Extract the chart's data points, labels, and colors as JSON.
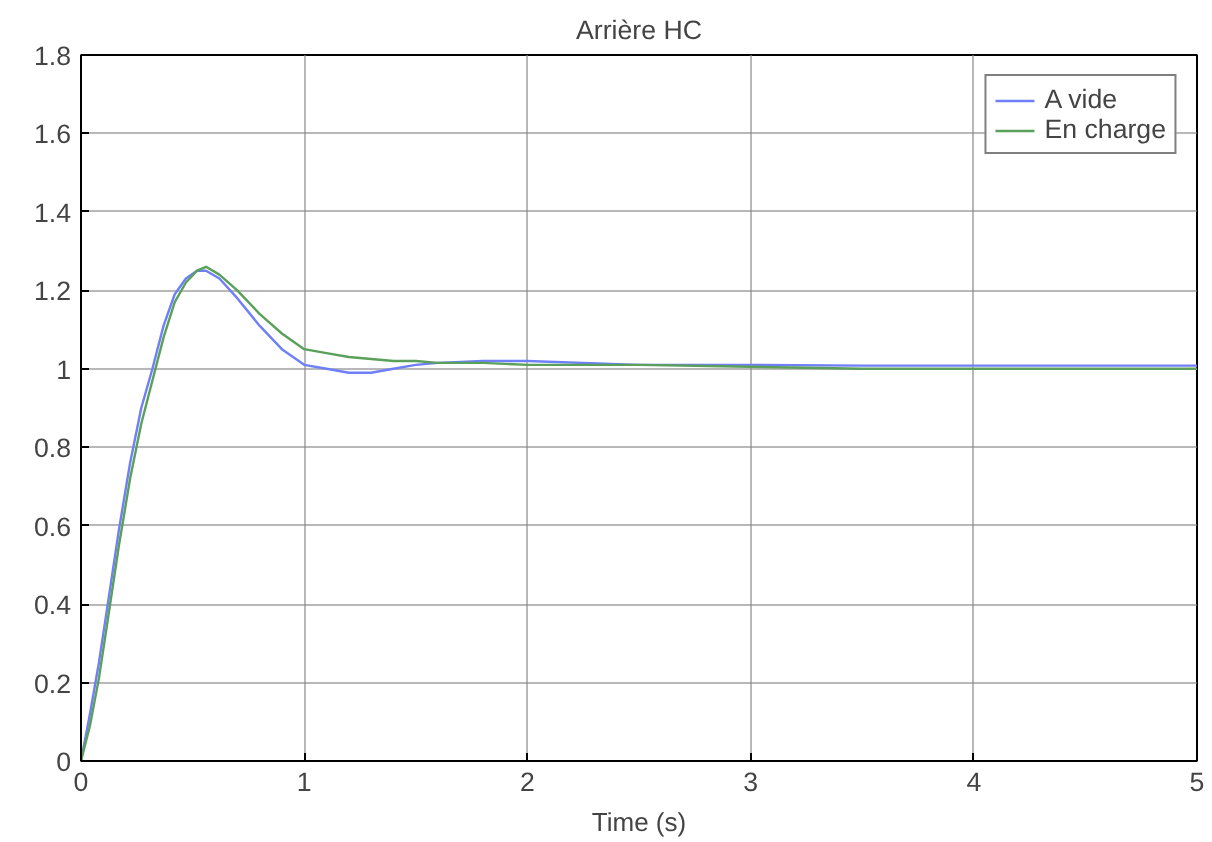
{
  "chart_data": {
    "type": "line",
    "title": "Arrière HC",
    "xlabel": "Time (s)",
    "xlim": [
      0,
      5
    ],
    "ylim": [
      0,
      1.8
    ],
    "xticks": [
      0,
      1,
      2,
      3,
      4,
      5
    ],
    "yticks": [
      0,
      0.2,
      0.4,
      0.6,
      0.8,
      1,
      1.2,
      1.4,
      1.6,
      1.8
    ],
    "grid": true,
    "legend": "top right",
    "line_style": "solid",
    "series": [
      {
        "name": "A vide",
        "color": "#6f7ff7",
        "x": [
          0,
          0.04,
          0.08,
          0.12,
          0.17,
          0.22,
          0.27,
          0.32,
          0.37,
          0.42,
          0.47,
          0.52,
          0.56,
          0.62,
          0.7,
          0.8,
          0.9,
          1.0,
          1.1,
          1.2,
          1.3,
          1.4,
          1.5,
          1.6,
          1.8,
          2.0,
          2.5,
          3.0,
          3.5,
          4.0,
          4.5,
          5.0
        ],
        "values": [
          0,
          0.12,
          0.25,
          0.4,
          0.59,
          0.76,
          0.9,
          1.0,
          1.11,
          1.19,
          1.23,
          1.25,
          1.25,
          1.23,
          1.18,
          1.11,
          1.05,
          1.01,
          1.0,
          0.99,
          0.99,
          1.0,
          1.01,
          1.015,
          1.02,
          1.02,
          1.01,
          1.01,
          1.008,
          1.008,
          1.008,
          1.008
        ]
      },
      {
        "name": "En charge",
        "color": "#5aa05a",
        "x": [
          0,
          0.04,
          0.08,
          0.12,
          0.17,
          0.22,
          0.27,
          0.32,
          0.37,
          0.42,
          0.47,
          0.52,
          0.56,
          0.62,
          0.7,
          0.8,
          0.9,
          1.0,
          1.1,
          1.2,
          1.3,
          1.4,
          1.5,
          1.6,
          1.8,
          2.0,
          2.5,
          3.0,
          3.5,
          4.0,
          4.5,
          5.0
        ],
        "values": [
          0,
          0.09,
          0.21,
          0.36,
          0.55,
          0.72,
          0.86,
          0.97,
          1.08,
          1.17,
          1.22,
          1.25,
          1.26,
          1.24,
          1.2,
          1.14,
          1.09,
          1.05,
          1.04,
          1.03,
          1.025,
          1.02,
          1.02,
          1.015,
          1.015,
          1.01,
          1.01,
          1.005,
          1.0,
          1.0,
          1.0,
          1.0
        ]
      }
    ]
  }
}
